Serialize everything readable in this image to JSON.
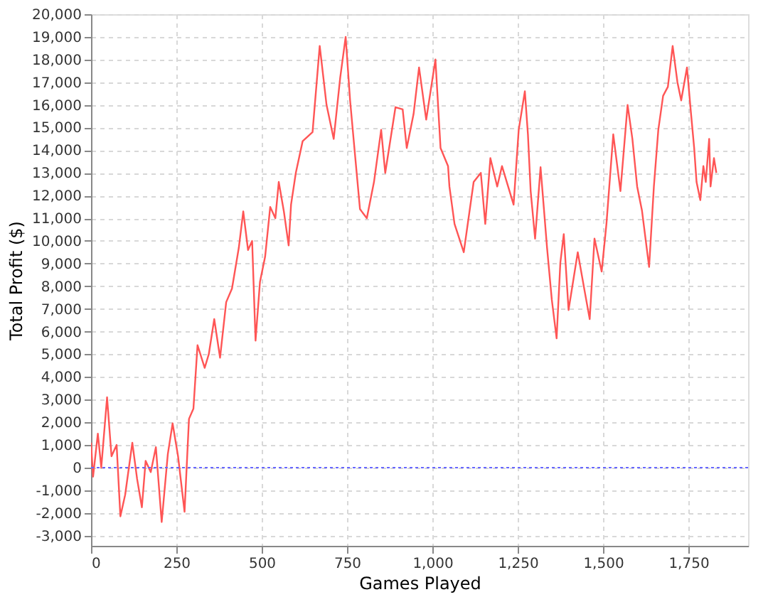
{
  "chart_data": {
    "type": "line",
    "xlabel": "Games Played",
    "ylabel": "Total Profit ($)",
    "xlim": [
      0,
      1925
    ],
    "ylim": [
      -3450,
      20000
    ],
    "xticks": [
      {
        "value": 0,
        "label": "0"
      },
      {
        "value": 250,
        "label": "250"
      },
      {
        "value": 500,
        "label": "500"
      },
      {
        "value": 750,
        "label": "750"
      },
      {
        "value": 1000,
        "label": "1,000"
      },
      {
        "value": 1250,
        "label": "1,250"
      },
      {
        "value": 1500,
        "label": "1,500"
      },
      {
        "value": 1750,
        "label": "1,750"
      }
    ],
    "yticks": [
      {
        "value": -3000,
        "label": "-3,000"
      },
      {
        "value": -2000,
        "label": "-2,000"
      },
      {
        "value": -1000,
        "label": "-1,000"
      },
      0,
      {
        "value": 1000,
        "label": "1,000"
      },
      {
        "value": 2000,
        "label": "2,000"
      },
      {
        "value": 3000,
        "label": "3,000"
      },
      {
        "value": 4000,
        "label": "4,000"
      },
      {
        "value": 5000,
        "label": "5,000"
      },
      {
        "value": 6000,
        "label": "6,000"
      },
      {
        "value": 7000,
        "label": "7,000"
      },
      {
        "value": 8000,
        "label": "8,000"
      },
      {
        "value": 9000,
        "label": "9,000"
      },
      {
        "value": 10000,
        "label": "10,000"
      },
      {
        "value": 11000,
        "label": "11,000"
      },
      {
        "value": 12000,
        "label": "12,000"
      },
      {
        "value": 13000,
        "label": "13,000"
      },
      {
        "value": 14000,
        "label": "14,000"
      },
      {
        "value": 15000,
        "label": "15,000"
      },
      {
        "value": 16000,
        "label": "16,000"
      },
      {
        "value": 17000,
        "label": "17,000"
      },
      {
        "value": 18000,
        "label": "18,000"
      },
      {
        "value": 19000,
        "label": "19,000"
      },
      {
        "value": 20000,
        "label": "20,000"
      }
    ],
    "grid": true,
    "marker": "none",
    "line_style": "solid",
    "ref_lines": [
      {
        "axis": "y",
        "value": 0,
        "color": "#6666ff",
        "line_style": "dotted"
      }
    ],
    "series": [
      {
        "color": "#ff5555",
        "x": [
          0,
          6,
          20,
          30,
          47,
          60,
          75,
          86,
          100,
          121,
          135,
          149,
          160,
          175,
          190,
          207,
          225,
          239,
          255,
          274,
          287,
          300,
          312,
          333,
          345,
          361,
          378,
          396,
          413,
          433,
          446,
          460,
          472,
          482,
          495,
          510,
          525,
          540,
          550,
          565,
          579,
          586,
          600,
          620,
          649,
          670,
          690,
          711,
          730,
          746,
          759,
          774,
          788,
          808,
          829,
          850,
          862,
          892,
          913,
          925,
          945,
          961,
          982,
          1009,
          1024,
          1046,
          1050,
          1065,
          1092,
          1121,
          1142,
          1155,
          1170,
          1190,
          1204,
          1238,
          1253,
          1271,
          1280,
          1288,
          1301,
          1317,
          1336,
          1350,
          1364,
          1375,
          1385,
          1399,
          1426,
          1446,
          1461,
          1475,
          1496,
          1510,
          1530,
          1551,
          1572,
          1586,
          1600,
          1614,
          1635,
          1649,
          1662,
          1676,
          1690,
          1704,
          1718,
          1729,
          1746,
          1757,
          1767,
          1774,
          1785,
          1794,
          1801,
          1811,
          1815,
          1825,
          1832
        ],
        "values": [
          1100,
          -400,
          1500,
          0,
          3100,
          500,
          1000,
          -2150,
          -1200,
          1100,
          -500,
          -1750,
          300,
          -200,
          900,
          -2400,
          600,
          1950,
          500,
          -1950,
          2150,
          2600,
          5400,
          4400,
          5000,
          6550,
          4850,
          7300,
          7900,
          9700,
          11300,
          9600,
          10000,
          5600,
          8200,
          9300,
          11500,
          11000,
          12600,
          11300,
          9800,
          11600,
          13000,
          14400,
          14800,
          18600,
          16000,
          14500,
          17200,
          19000,
          16200,
          13700,
          11400,
          11000,
          12600,
          14900,
          13000,
          15900,
          15800,
          14100,
          15600,
          17650,
          15350,
          18000,
          14100,
          13300,
          12400,
          10750,
          9500,
          12600,
          13000,
          10750,
          13650,
          12400,
          13300,
          11600,
          14900,
          16600,
          14700,
          12200,
          10100,
          13250,
          9700,
          7400,
          5700,
          9050,
          10300,
          6950,
          9500,
          7800,
          6550,
          10100,
          8650,
          10750,
          14700,
          12200,
          16000,
          14500,
          12400,
          11350,
          8850,
          12400,
          14900,
          16400,
          16800,
          18600,
          17000,
          16200,
          17650,
          15750,
          14100,
          12600,
          11800,
          13300,
          12600,
          14500,
          12400,
          13650,
          13000
        ]
      }
    ]
  }
}
